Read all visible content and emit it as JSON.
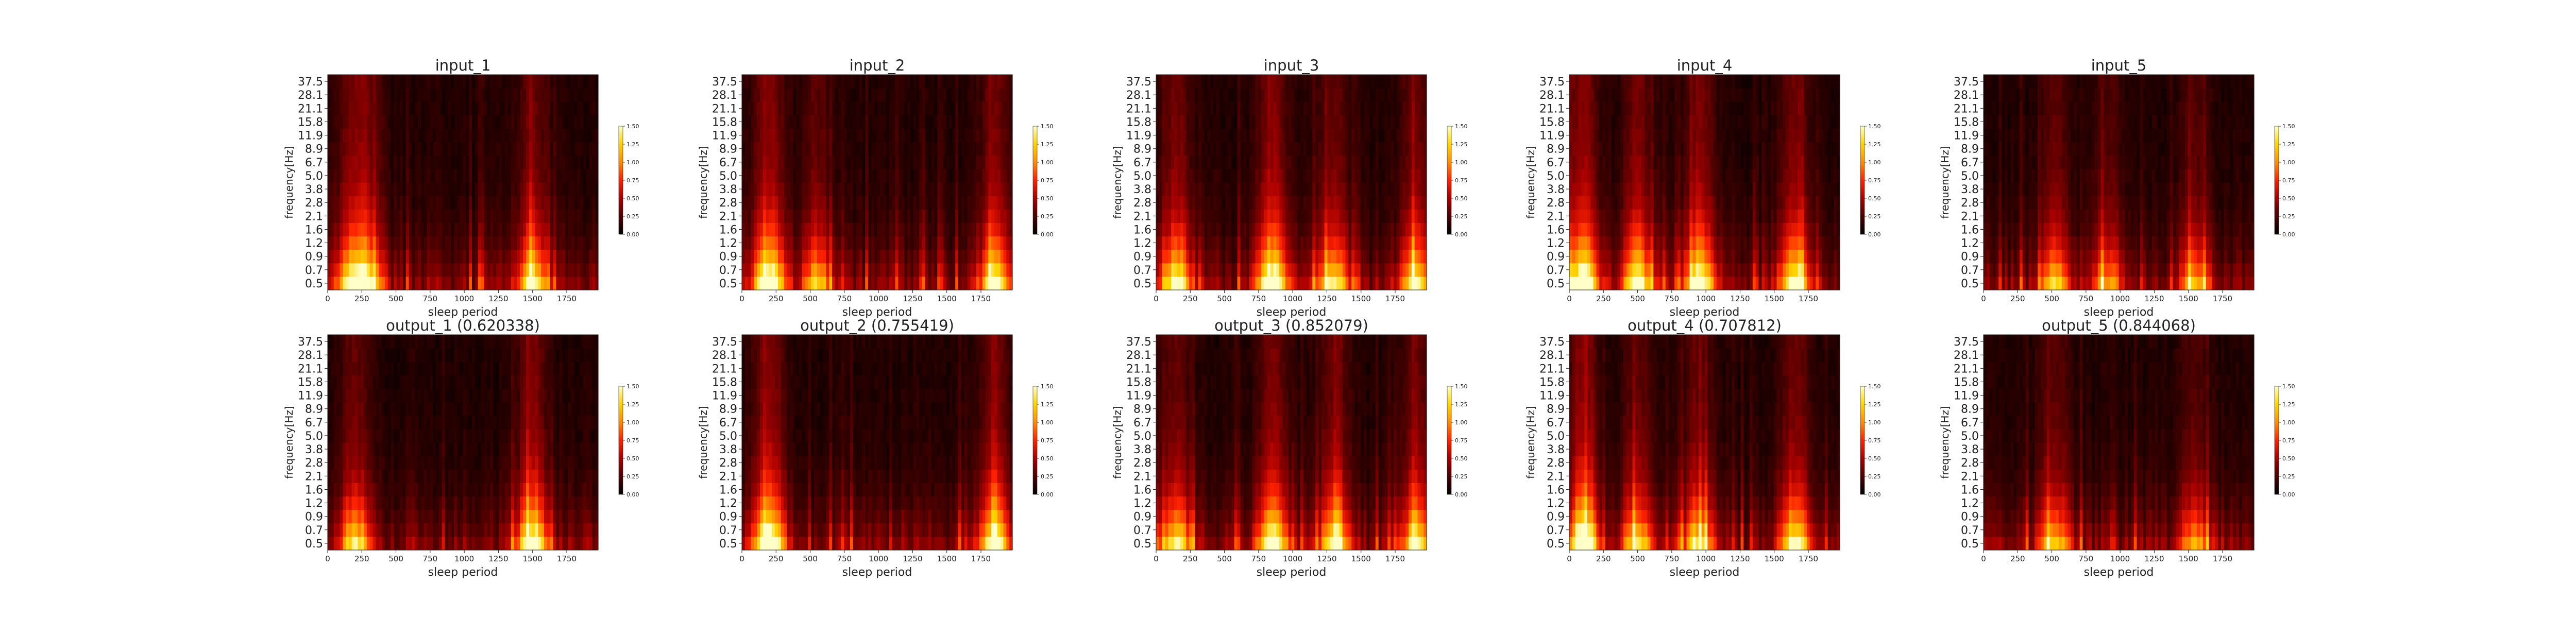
{
  "colors": {
    "colormap": [
      "#000000",
      "#4d0000",
      "#a80000",
      "#ff2200",
      "#ff8c00",
      "#ffd400",
      "#ffffc8"
    ],
    "axis": "#222222"
  },
  "chart_data": [
    {
      "type": "heatmap",
      "title": "input_1",
      "xlabel": "sleep period",
      "ylabel": "frequency[Hz]",
      "xlim": [
        0,
        1980
      ],
      "xticks": [
        0,
        250,
        500,
        750,
        1000,
        1250,
        1500,
        1750
      ],
      "yticks": [
        "0.5",
        "0.7",
        "0.9",
        "1.2",
        "1.6",
        "2.1",
        "2.8",
        "3.8",
        "5.0",
        "6.7",
        "8.9",
        "11.9",
        "15.8",
        "21.1",
        "28.1",
        "37.5"
      ],
      "color_range": [
        0,
        1.5
      ],
      "colorbar_ticks": [
        "0.00",
        "0.25",
        "0.50",
        "0.75",
        "1.00",
        "1.25",
        "1.50"
      ],
      "hotspots": [
        [
          180,
          0.75
        ],
        [
          300,
          0.6
        ],
        [
          1500,
          0.8
        ]
      ]
    },
    {
      "type": "heatmap",
      "title": "input_2",
      "xlabel": "sleep period",
      "ylabel": "frequency[Hz]",
      "xlim": [
        0,
        1980
      ],
      "xticks": [
        0,
        250,
        500,
        750,
        1000,
        1250,
        1500,
        1750
      ],
      "yticks": [
        "0.5",
        "0.7",
        "0.9",
        "1.2",
        "1.6",
        "2.1",
        "2.8",
        "3.8",
        "5.0",
        "6.7",
        "8.9",
        "11.9",
        "15.8",
        "21.1",
        "28.1",
        "37.5"
      ],
      "color_range": [
        0,
        1.5
      ],
      "colorbar_ticks": [
        "0.00",
        "0.25",
        "0.50",
        "0.75",
        "1.00",
        "1.25",
        "1.50"
      ],
      "hotspots": [
        [
          200,
          1.0
        ],
        [
          550,
          0.6
        ],
        [
          1850,
          0.8
        ]
      ]
    },
    {
      "type": "heatmap",
      "title": "input_3",
      "xlabel": "sleep period",
      "ylabel": "frequency[Hz]",
      "xlim": [
        0,
        1980
      ],
      "xticks": [
        0,
        250,
        500,
        750,
        1000,
        1250,
        1500,
        1750
      ],
      "yticks": [
        "0.5",
        "0.7",
        "0.9",
        "1.2",
        "1.6",
        "2.1",
        "2.8",
        "3.8",
        "5.0",
        "6.7",
        "8.9",
        "11.9",
        "15.8",
        "21.1",
        "28.1",
        "37.5"
      ],
      "color_range": [
        0,
        1.5
      ],
      "colorbar_ticks": [
        "0.00",
        "0.25",
        "0.50",
        "0.75",
        "1.00",
        "1.25",
        "1.50"
      ],
      "hotspots": [
        [
          150,
          0.8
        ],
        [
          850,
          1.0
        ],
        [
          1300,
          0.7
        ],
        [
          1900,
          0.8
        ]
      ]
    },
    {
      "type": "heatmap",
      "title": "input_4",
      "xlabel": "sleep period",
      "ylabel": "frequency[Hz]",
      "xlim": [
        0,
        1980
      ],
      "xticks": [
        0,
        250,
        500,
        750,
        1000,
        1250,
        1500,
        1750
      ],
      "yticks": [
        "0.5",
        "0.7",
        "0.9",
        "1.2",
        "1.6",
        "2.1",
        "2.8",
        "3.8",
        "5.0",
        "6.7",
        "8.9",
        "11.9",
        "15.8",
        "21.1",
        "28.1",
        "37.5"
      ],
      "color_range": [
        0,
        1.5
      ],
      "colorbar_ticks": [
        "0.00",
        "0.25",
        "0.50",
        "0.75",
        "1.00",
        "1.25",
        "1.50"
      ],
      "hotspots": [
        [
          100,
          1.0
        ],
        [
          500,
          0.8
        ],
        [
          950,
          0.9
        ],
        [
          1650,
          0.8
        ]
      ]
    },
    {
      "type": "heatmap",
      "title": "input_5",
      "xlabel": "sleep period",
      "ylabel": "frequency[Hz]",
      "xlim": [
        0,
        1980
      ],
      "xticks": [
        0,
        250,
        500,
        750,
        1000,
        1250,
        1500,
        1750
      ],
      "yticks": [
        "0.5",
        "0.7",
        "0.9",
        "1.2",
        "1.6",
        "2.1",
        "2.8",
        "3.8",
        "5.0",
        "6.7",
        "8.9",
        "11.9",
        "15.8",
        "21.1",
        "28.1",
        "37.5"
      ],
      "color_range": [
        0,
        1.5
      ],
      "colorbar_ticks": [
        "0.00",
        "0.25",
        "0.50",
        "0.75",
        "1.00",
        "1.25",
        "1.50"
      ],
      "hotspots": [
        [
          520,
          0.6
        ],
        [
          900,
          0.5
        ],
        [
          1550,
          0.5
        ]
      ]
    },
    {
      "type": "heatmap",
      "title": "output_1 (0.620338)",
      "xlabel": "sleep period",
      "ylabel": "frequency[Hz]",
      "xlim": [
        0,
        1980
      ],
      "xticks": [
        0,
        250,
        500,
        750,
        1000,
        1250,
        1500,
        1750
      ],
      "yticks": [
        "0.5",
        "0.7",
        "0.9",
        "1.2",
        "1.6",
        "2.1",
        "2.8",
        "3.8",
        "5.0",
        "6.7",
        "8.9",
        "11.9",
        "15.8",
        "21.1",
        "28.1",
        "37.5"
      ],
      "color_range": [
        0,
        1.5
      ],
      "colorbar_ticks": [
        "0.00",
        "0.25",
        "0.50",
        "0.75",
        "1.00",
        "1.25",
        "1.50"
      ],
      "hotspots": [
        [
          200,
          0.7
        ],
        [
          1500,
          0.9
        ]
      ]
    },
    {
      "type": "heatmap",
      "title": "output_2 (0.755419)",
      "xlabel": "sleep period",
      "ylabel": "frequency[Hz]",
      "xlim": [
        0,
        1980
      ],
      "xticks": [
        0,
        250,
        500,
        750,
        1000,
        1250,
        1500,
        1750
      ],
      "yticks": [
        "0.5",
        "0.7",
        "0.9",
        "1.2",
        "1.6",
        "2.1",
        "2.8",
        "3.8",
        "5.0",
        "6.7",
        "8.9",
        "11.9",
        "15.8",
        "21.1",
        "28.1",
        "37.5"
      ],
      "color_range": [
        0,
        1.5
      ],
      "colorbar_ticks": [
        "0.00",
        "0.25",
        "0.50",
        "0.75",
        "1.00",
        "1.25",
        "1.50"
      ],
      "hotspots": [
        [
          200,
          1.0
        ],
        [
          1850,
          0.8
        ]
      ]
    },
    {
      "type": "heatmap",
      "title": "output_3 (0.852079)",
      "xlabel": "sleep period",
      "ylabel": "frequency[Hz]",
      "xlim": [
        0,
        1980
      ],
      "xticks": [
        0,
        250,
        500,
        750,
        1000,
        1250,
        1500,
        1750
      ],
      "yticks": [
        "0.5",
        "0.7",
        "0.9",
        "1.2",
        "1.6",
        "2.1",
        "2.8",
        "3.8",
        "5.0",
        "6.7",
        "8.9",
        "11.9",
        "15.8",
        "21.1",
        "28.1",
        "37.5"
      ],
      "color_range": [
        0,
        1.5
      ],
      "colorbar_ticks": [
        "0.00",
        "0.25",
        "0.50",
        "0.75",
        "1.00",
        "1.25",
        "1.50"
      ],
      "hotspots": [
        [
          150,
          0.7
        ],
        [
          850,
          0.9
        ],
        [
          1300,
          0.7
        ],
        [
          1900,
          0.7
        ]
      ]
    },
    {
      "type": "heatmap",
      "title": "output_4 (0.707812)",
      "xlabel": "sleep period",
      "ylabel": "frequency[Hz]",
      "xlim": [
        0,
        1980
      ],
      "xticks": [
        0,
        250,
        500,
        750,
        1000,
        1250,
        1500,
        1750
      ],
      "yticks": [
        "0.5",
        "0.7",
        "0.9",
        "1.2",
        "1.6",
        "2.1",
        "2.8",
        "3.8",
        "5.0",
        "6.7",
        "8.9",
        "11.9",
        "15.8",
        "21.1",
        "28.1",
        "37.5"
      ],
      "color_range": [
        0,
        1.5
      ],
      "colorbar_ticks": [
        "0.00",
        "0.25",
        "0.50",
        "0.75",
        "1.00",
        "1.25",
        "1.50"
      ],
      "hotspots": [
        [
          100,
          1.0
        ],
        [
          500,
          0.7
        ],
        [
          950,
          0.7
        ],
        [
          1650,
          0.8
        ]
      ]
    },
    {
      "type": "heatmap",
      "title": "output_5 (0.844068)",
      "xlabel": "sleep period",
      "ylabel": "frequency[Hz]",
      "xlim": [
        0,
        1980
      ],
      "xticks": [
        0,
        250,
        500,
        750,
        1000,
        1250,
        1500,
        1750
      ],
      "yticks": [
        "0.5",
        "0.7",
        "0.9",
        "1.2",
        "1.6",
        "2.1",
        "2.8",
        "3.8",
        "5.0",
        "6.7",
        "8.9",
        "11.9",
        "15.8",
        "21.1",
        "28.1",
        "37.5"
      ],
      "color_range": [
        0,
        1.5
      ],
      "colorbar_ticks": [
        "0.00",
        "0.25",
        "0.50",
        "0.75",
        "1.00",
        "1.25",
        "1.50"
      ],
      "hotspots": [
        [
          520,
          0.6
        ],
        [
          1550,
          0.5
        ]
      ]
    }
  ]
}
